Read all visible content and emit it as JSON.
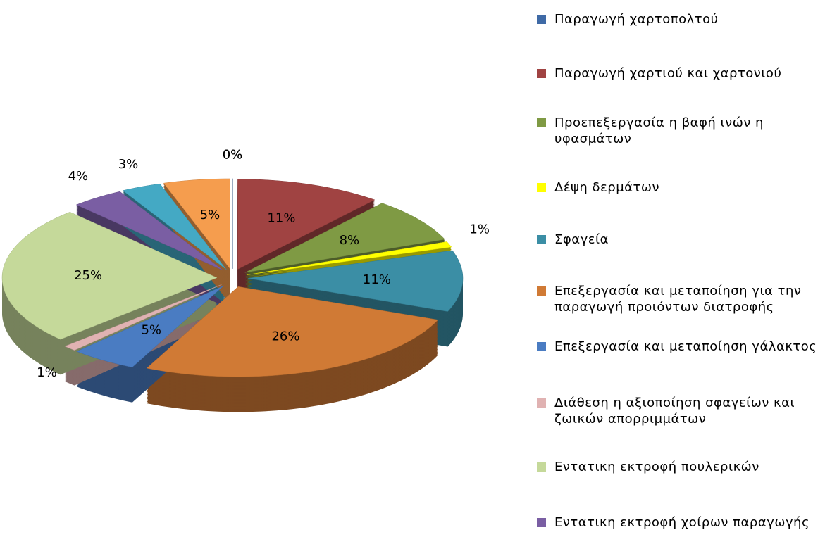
{
  "chart_data": {
    "type": "pie",
    "categories": [
      "Παραγωγή χαρτοπολτού",
      "Παραγωγή χαρτιού και χαρτονιού",
      "Προεπεξεργασία η βαφή ινών η υφασμάτων",
      "Δέψη δερμάτων",
      "Σφαγεία",
      "Επεξεργασία και μεταποίηση για την παραγωγή προιόντων διατροφής",
      "Επεξεργασία και μεταποίηση γάλακτος",
      "Διάθεση η αξιοποίηση σφαγείων και ζωικών απορριμμάτων",
      "Εντατικη εκτροφή πουλερικών",
      "Εντατικη εκτροφή χοίρων παραγωγής",
      null,
      null,
      null
    ],
    "values": [
      0,
      11,
      8,
      1,
      11,
      26,
      5,
      1,
      25,
      4,
      3,
      5,
      0
    ],
    "value_labels": [
      "0%",
      "11%",
      "8%",
      "1%",
      "11%",
      "26%",
      "5%",
      "1%",
      "25%",
      "4%",
      "3%",
      "5%",
      "0%"
    ],
    "colors": [
      "#3f6aa6",
      "#a04342",
      "#7f9a44",
      "#ffff00",
      "#3b8ea5",
      "#d07a35",
      "#4a7cc2",
      "#e0b2b2",
      "#c5d99a",
      "#7a5ea3",
      "#44a9c4",
      "#f59d4e",
      "#2e5a8c"
    ],
    "legend": "right"
  }
}
